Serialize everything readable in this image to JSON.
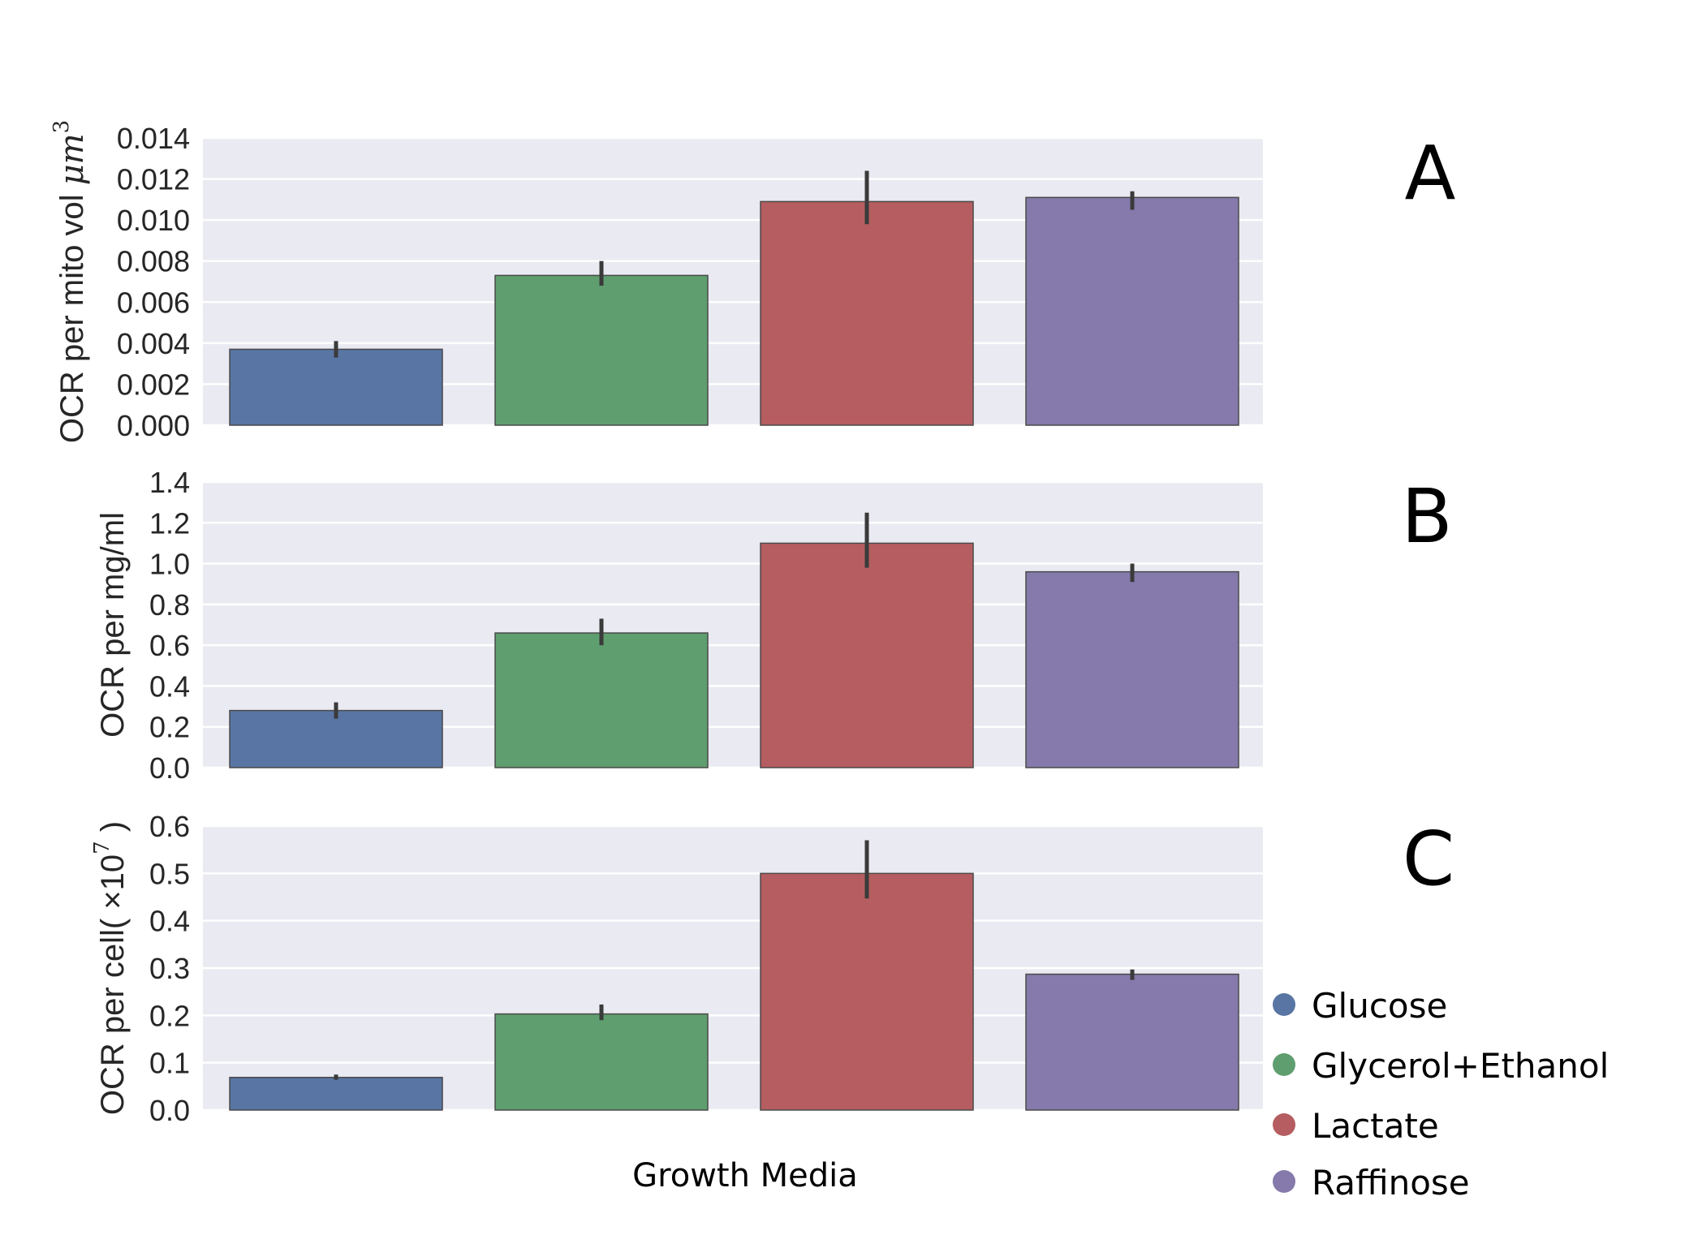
{
  "chart_data": [
    {
      "type": "bar",
      "panel_label": "A",
      "categories": [
        "Glucose",
        "Glycerol+Ethanol",
        "Lactate",
        "Raffinose"
      ],
      "values": [
        0.0037,
        0.0073,
        0.0109,
        0.0111
      ],
      "error_low": [
        0.0033,
        0.0068,
        0.0098,
        0.0105
      ],
      "error_high": [
        0.0041,
        0.008,
        0.0124,
        0.0114
      ],
      "ylabel": "OCR per mito vol μm³",
      "ylabel_text": "OCR per mito vol ",
      "ylabel_unit": "μm",
      "ylabel_sup": "3",
      "ylim": [
        0,
        0.014
      ],
      "yticks": [
        "0.000",
        "0.002",
        "0.004",
        "0.006",
        "0.008",
        "0.010",
        "0.012",
        "0.014"
      ],
      "grid": true
    },
    {
      "type": "bar",
      "panel_label": "B",
      "categories": [
        "Glucose",
        "Glycerol+Ethanol",
        "Lactate",
        "Raffinose"
      ],
      "values": [
        0.28,
        0.66,
        1.1,
        0.96
      ],
      "error_low": [
        0.24,
        0.6,
        0.98,
        0.91
      ],
      "error_high": [
        0.32,
        0.73,
        1.25,
        1.0
      ],
      "ylabel": "OCR per mg/ml",
      "ylim": [
        0,
        1.4
      ],
      "yticks": [
        "0.0",
        "0.2",
        "0.4",
        "0.6",
        "0.8",
        "1.0",
        "1.2",
        "1.4"
      ],
      "grid": true
    },
    {
      "type": "bar",
      "panel_label": "C",
      "categories": [
        "Glucose",
        "Glycerol+Ethanol",
        "Lactate",
        "Raffinose"
      ],
      "values": [
        0.069,
        0.203,
        0.5,
        0.287
      ],
      "error_low": [
        0.064,
        0.19,
        0.447,
        0.275
      ],
      "error_high": [
        0.075,
        0.223,
        0.57,
        0.297
      ],
      "ylabel": "OCR per cell( ×10⁷ )",
      "ylabel_text": "OCR per cell( ×10",
      "ylabel_sup": "7",
      "ylabel_tail": " )",
      "ylim": [
        0,
        0.6
      ],
      "yticks": [
        "0.0",
        "0.1",
        "0.2",
        "0.3",
        "0.4",
        "0.5",
        "0.6"
      ],
      "grid": true
    }
  ],
  "xlabel": "Growth Media",
  "legend": {
    "placement": "bottom-right",
    "entries": [
      {
        "label": "Glucose",
        "color": "#5875a4"
      },
      {
        "label": "Glycerol+Ethanol",
        "color": "#5f9e6e"
      },
      {
        "label": "Lactate",
        "color": "#b55d60"
      },
      {
        "label": "Raffinose",
        "color": "#857aab"
      }
    ]
  },
  "colors": {
    "plot_background": "#eaeaf2",
    "gridline": "#ffffff",
    "error_bar": "#3a3a3a",
    "bar_edge": "#4a4a4a"
  }
}
